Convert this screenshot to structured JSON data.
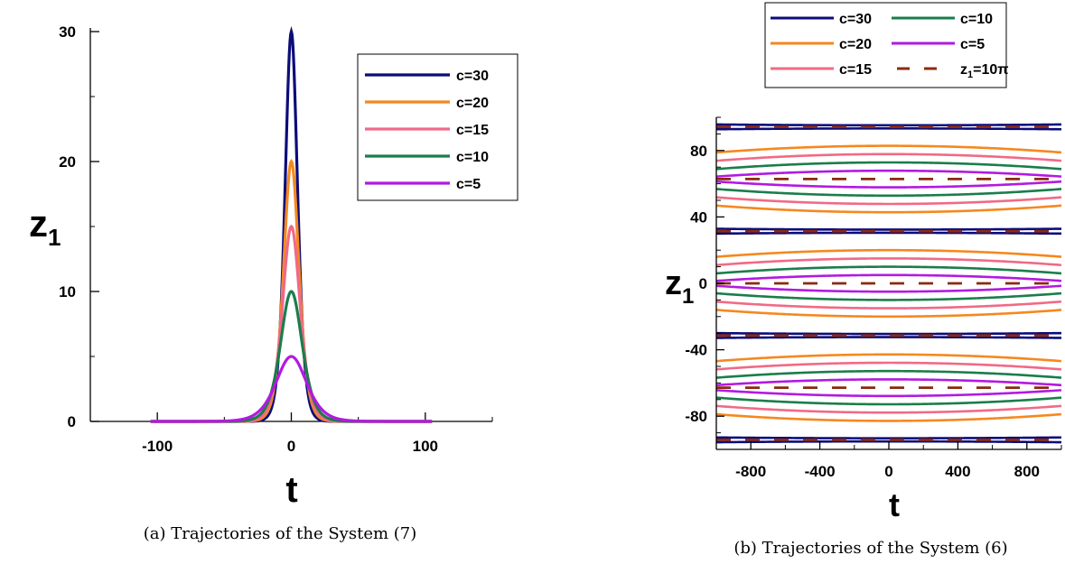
{
  "figure_a": {
    "caption": "(a) Trajectories of the System (7)",
    "chart_data": {
      "type": "line",
      "xlabel": "t",
      "ylabel": "z",
      "ylabel_sub": "1",
      "xlim": [
        -150,
        150
      ],
      "ylim": [
        0,
        30
      ],
      "xticks": [
        -100,
        0,
        100
      ],
      "xtick_labels": [
        "-100",
        "0",
        "100"
      ],
      "yticks": [
        0,
        10,
        20,
        30
      ],
      "ytick_labels": [
        "0",
        "10",
        "20",
        "30"
      ],
      "x_range": [
        -105,
        105
      ],
      "grid": false,
      "legend_position": "top-right",
      "series": [
        {
          "name": "c=30",
          "c": 30,
          "color": "#0c0c7a"
        },
        {
          "name": "c=20",
          "c": 20,
          "color": "#f5881f"
        },
        {
          "name": "c=15",
          "c": 15,
          "color": "#f06a86"
        },
        {
          "name": "c=10",
          "c": 10,
          "color": "#1b7d4b"
        },
        {
          "name": "c=5",
          "c": 5,
          "color": "#b21ae0"
        }
      ]
    }
  },
  "figure_b": {
    "caption": "(b) Trajectories of the System (6)",
    "chart_data": {
      "type": "line",
      "xlabel": "t",
      "ylabel": "z",
      "ylabel_sub": "1",
      "xlim": [
        -1000,
        1000
      ],
      "ylim": [
        -100,
        100
      ],
      "xticks": [
        -800,
        -400,
        0,
        400,
        800
      ],
      "xtick_labels": [
        "-800",
        "-400",
        "0",
        "400",
        "800"
      ],
      "yticks": [
        -80,
        -40,
        0,
        40,
        80
      ],
      "ytick_labels": [
        "-80",
        "-40",
        "0",
        "40",
        "80"
      ],
      "grid": false,
      "legend_position": "top-outside",
      "period": 62.83,
      "series": [
        {
          "name": "c=30",
          "color": "#0c0c7a",
          "offsets_at_center": [
            1.9,
            -1.9
          ],
          "offsets_at_edge": [
            2.9,
            -2.9
          ],
          "dashed": false
        },
        {
          "name": "c=20",
          "color": "#f5881f",
          "offsets_at_center": [
            20,
            -20
          ],
          "offsets_at_edge": [
            16,
            -16
          ],
          "dashed": false
        },
        {
          "name": "c=15",
          "color": "#f06a86",
          "offsets_at_center": [
            15,
            -15
          ],
          "offsets_at_edge": [
            11,
            -11
          ],
          "dashed": false
        },
        {
          "name": "c=10",
          "color": "#1b7d4b",
          "offsets_at_center": [
            10,
            -10
          ],
          "offsets_at_edge": [
            6,
            -6
          ],
          "dashed": false
        },
        {
          "name": "c=5",
          "color": "#b21ae0",
          "offsets_at_center": [
            5,
            -5
          ],
          "offsets_at_edge": [
            1.5,
            -1.5
          ],
          "dashed": false
        },
        {
          "name": "z₁=10π",
          "color": "#8b2a10",
          "constant_levels": [
            -94.25,
            -31.42,
            0,
            31.42,
            62.83,
            94.25,
            -62.83
          ],
          "dashed": true
        }
      ],
      "legend_rows": [
        [
          {
            "name": "c=30",
            "color": "#0c0c7a",
            "dashed": false
          },
          {
            "name": "c=10",
            "color": "#1b7d4b",
            "dashed": false
          }
        ],
        [
          {
            "name": "c=20",
            "color": "#f5881f",
            "dashed": false
          },
          {
            "name": "c=5",
            "color": "#b21ae0",
            "dashed": false
          }
        ],
        [
          {
            "name": "c=15",
            "color": "#f06a86",
            "dashed": false
          },
          {
            "name": "z",
            "sub": "1",
            "suffix": "=10π",
            "color": "#8b2a10",
            "dashed": true
          }
        ]
      ]
    }
  }
}
